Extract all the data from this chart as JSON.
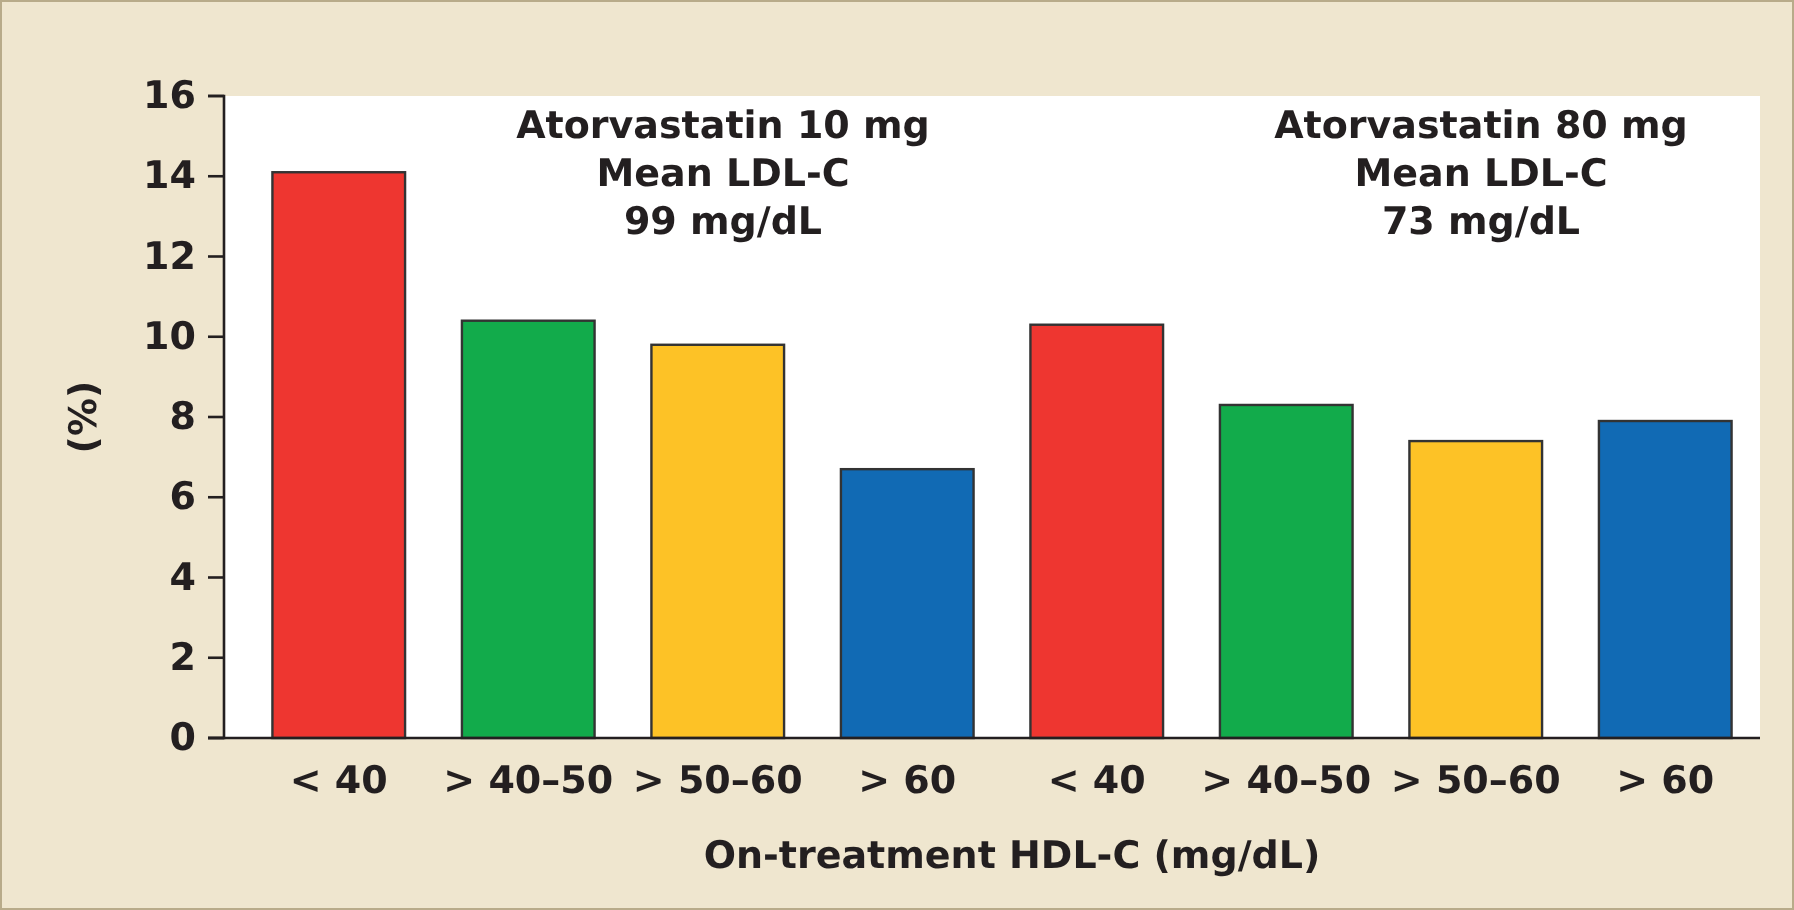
{
  "chart_data": {
    "type": "bar",
    "categories": [
      "< 40",
      "> 40–50",
      "> 50–60",
      "> 60",
      "< 40",
      "> 40–50",
      "> 50–60",
      "> 60"
    ],
    "values": [
      14.1,
      10.4,
      9.8,
      6.7,
      10.3,
      8.3,
      7.4,
      7.9
    ],
    "colors": [
      "#ee3630",
      "#12ab4b",
      "#fdc226",
      "#116ab4",
      "#ee3630",
      "#12ab4b",
      "#fdc226",
      "#116ab4"
    ],
    "xlabel": "On-treatment HDL-C (mg/dL)",
    "ylabel": "(%)",
    "ylim": [
      0,
      16
    ],
    "yticks": [
      0,
      2,
      4,
      6,
      8,
      10,
      12,
      14,
      16
    ],
    "annotations": [
      "Atorvastatin 10 mg\nMean LDL-C\n99 mg/dL",
      "Atorvastatin 80 mg\nMean LDL-C\n73 mg/dL"
    ],
    "grid": false
  }
}
